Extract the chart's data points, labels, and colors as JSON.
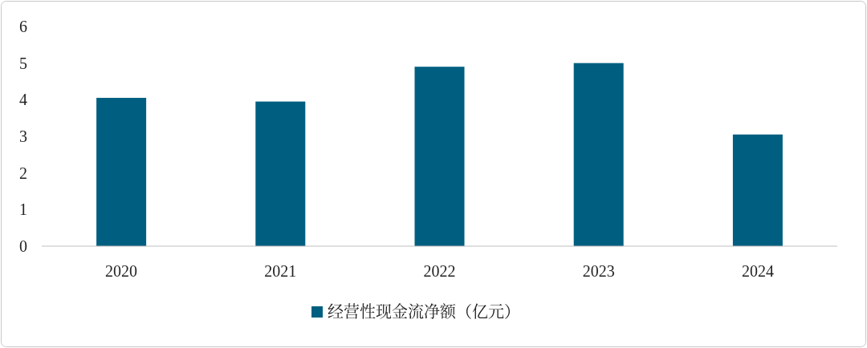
{
  "chart_data": {
    "type": "bar",
    "categories": [
      "2020",
      "2021",
      "2022",
      "2023",
      "2024"
    ],
    "series": [
      {
        "name": "经营性现金流净额（亿元）",
        "color": "#005f80",
        "values": [
          4.05,
          3.95,
          4.9,
          5.0,
          3.05
        ]
      }
    ],
    "ylim": [
      0,
      6
    ],
    "yticks": [
      0,
      1,
      2,
      3,
      4,
      5,
      6
    ],
    "grid": false,
    "legend": "bottom"
  }
}
